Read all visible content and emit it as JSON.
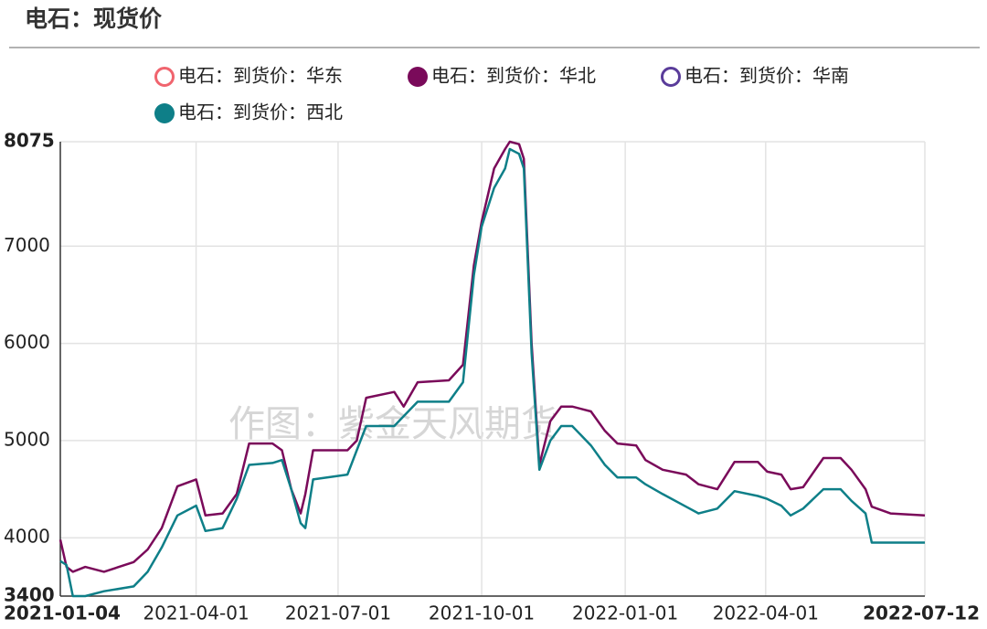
{
  "title": "电石：现货价",
  "chart_data": {
    "type": "line",
    "watermark": "作图：紫金天风期货",
    "x": [
      "2021-01-04",
      "2021-01-08",
      "2021-01-12",
      "2021-01-20",
      "2021-02-01",
      "2021-02-20",
      "2021-03-01",
      "2021-03-10",
      "2021-03-20",
      "2021-04-01",
      "2021-04-07",
      "2021-04-18",
      "2021-04-27",
      "2021-05-05",
      "2021-05-20",
      "2021-05-26",
      "2021-06-01",
      "2021-06-07",
      "2021-06-10",
      "2021-06-15",
      "2021-07-07",
      "2021-07-13",
      "2021-07-19",
      "2021-08-06",
      "2021-08-12",
      "2021-08-21",
      "2021-09-10",
      "2021-09-19",
      "2021-09-26",
      "2021-10-01",
      "2021-10-09",
      "2021-10-16",
      "2021-10-19",
      "2021-10-25",
      "2021-10-28",
      "2021-11-02",
      "2021-11-07",
      "2021-11-14",
      "2021-11-21",
      "2021-11-28",
      "2021-12-10",
      "2021-12-19",
      "2021-12-27",
      "2022-01-08",
      "2022-01-14",
      "2022-01-25",
      "2022-02-09",
      "2022-02-17",
      "2022-03-01",
      "2022-03-12",
      "2022-03-27",
      "2022-04-02",
      "2022-04-11",
      "2022-04-17",
      "2022-04-25",
      "2022-05-08",
      "2022-05-19",
      "2022-05-26",
      "2022-06-04",
      "2022-06-08",
      "2022-06-20",
      "2022-07-12"
    ],
    "series": [
      {
        "name": "电石：到货价：华东",
        "color": "#f0646e",
        "hidden": true,
        "values": [
          null,
          null,
          null,
          null,
          null,
          null,
          null,
          null,
          null,
          null,
          null,
          null,
          null,
          null,
          null,
          null,
          null,
          null,
          null,
          null,
          null,
          null,
          null,
          null,
          null,
          null,
          null,
          null,
          null,
          null,
          null,
          null,
          null,
          null,
          null,
          null,
          null,
          null,
          null,
          null,
          null,
          null,
          null,
          null,
          null,
          null,
          null,
          null,
          null,
          null,
          null,
          null,
          null,
          null,
          null,
          null,
          null,
          null,
          null,
          null,
          null,
          null
        ]
      },
      {
        "name": "电石：到货价：华北",
        "color": "#7a0a5a",
        "hidden": false,
        "values": [
          3980,
          3700,
          3650,
          3700,
          3650,
          3750,
          3880,
          4100,
          4530,
          4600,
          4230,
          4250,
          4450,
          4970,
          4970,
          4900,
          4500,
          4250,
          4450,
          4900,
          4900,
          5000,
          5440,
          5500,
          5350,
          5600,
          5620,
          5780,
          6800,
          7250,
          7800,
          8000,
          8075,
          8050,
          7900,
          6000,
          4750,
          5200,
          5350,
          5350,
          5300,
          5100,
          4970,
          4950,
          4800,
          4700,
          4650,
          4550,
          4500,
          4780,
          4780,
          4680,
          4650,
          4500,
          4520,
          4820,
          4820,
          4700,
          4500,
          4320,
          4250,
          4230
        ]
      },
      {
        "name": "电石：到货价：华南",
        "color": "#5a3c9a",
        "hidden": true,
        "values": [
          null,
          null,
          null,
          null,
          null,
          null,
          null,
          null,
          null,
          null,
          null,
          null,
          null,
          null,
          null,
          null,
          null,
          null,
          null,
          null,
          null,
          null,
          null,
          null,
          null,
          null,
          null,
          null,
          null,
          null,
          null,
          null,
          null,
          null,
          null,
          null,
          null,
          null,
          null,
          null,
          null,
          null,
          null,
          null,
          null,
          null,
          null,
          null,
          null,
          null,
          null,
          null,
          null,
          null,
          null,
          null,
          null,
          null,
          null,
          null,
          null,
          null
        ]
      },
      {
        "name": "电石：到货价：西北",
        "color": "#0e7f88",
        "hidden": false,
        "values": [
          3760,
          3720,
          3400,
          3400,
          3450,
          3500,
          3650,
          3900,
          4230,
          4330,
          4070,
          4100,
          4400,
          4750,
          4770,
          4800,
          4500,
          4150,
          4100,
          4600,
          4650,
          4900,
          5150,
          5150,
          5250,
          5400,
          5400,
          5600,
          6700,
          7200,
          7600,
          7800,
          8000,
          7950,
          7800,
          5900,
          4700,
          5000,
          5150,
          5150,
          4950,
          4750,
          4620,
          4620,
          4550,
          4450,
          4320,
          4250,
          4300,
          4480,
          4430,
          4400,
          4330,
          4230,
          4300,
          4500,
          4500,
          4380,
          4250,
          3950,
          3950,
          3950
        ]
      }
    ],
    "xlim": [
      "2021-01-04",
      "2022-07-12"
    ],
    "xticks": [
      "2021-01-04",
      "2021-04-01",
      "2021-07-01",
      "2021-10-01",
      "2022-01-01",
      "2022-04-01",
      "2022-07-12"
    ],
    "ylim": [
      3400,
      8075
    ],
    "yticks": [
      3400,
      4000,
      5000,
      6000,
      7000,
      8075
    ],
    "grid": true
  }
}
